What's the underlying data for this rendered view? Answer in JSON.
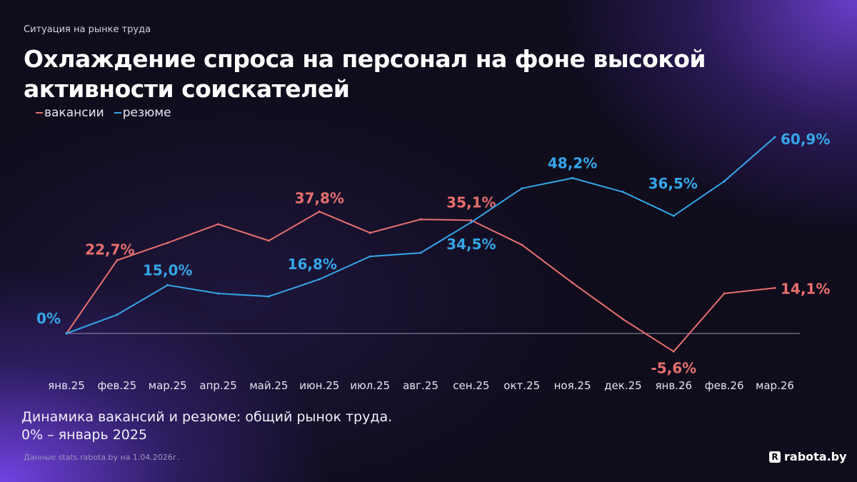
{
  "header": {
    "kicker": "Ситуация на рынке труда",
    "title": "Охлаждение спроса на персонал на фоне высокой активности соискателей"
  },
  "footer": {
    "subtitle_line1": "Динамика вакансий и резюме: общий рынок труда.",
    "subtitle_line2": "0% – январь 2025",
    "source": "Данные stats.rabota.by на 1.04.2026г.",
    "logo_text": "rabota.by",
    "logo_mark": "R"
  },
  "colors": {
    "vacancies": "#e8706e",
    "resumes": "#35a6ea",
    "baseline": "#9a93b0"
  },
  "chart_data": {
    "type": "line",
    "title": "Охлаждение спроса на персонал на фоне высокой активности соискателей",
    "categories": [
      "янв.25",
      "фев.25",
      "мар.25",
      "апр.25",
      "май.25",
      "июн.25",
      "июл.25",
      "авг.25",
      "сен.25",
      "окт.25",
      "ноя.25",
      "дек.25",
      "янв.26",
      "фев.26",
      "мар.26"
    ],
    "unit": "%",
    "ylim": [
      -10,
      65
    ],
    "grid": false,
    "baseline": 0,
    "legend_position": "top-left",
    "series": [
      {
        "name": "вакансии",
        "key": "vacancies",
        "values": [
          0,
          22.7,
          28.1,
          33.9,
          28.8,
          37.8,
          31.2,
          35.4,
          35.1,
          27.5,
          15.7,
          4.4,
          -5.6,
          12.4,
          14.1
        ],
        "labels": [
          {
            "index": 1,
            "text": "22,7%"
          },
          {
            "index": 5,
            "text": "37,8%"
          },
          {
            "index": 8,
            "text": "35,1%"
          },
          {
            "index": 12,
            "text": "-5,6%"
          },
          {
            "index": 14,
            "text": "14,1%"
          }
        ]
      },
      {
        "name": "резюме",
        "key": "resumes",
        "values": [
          0,
          5.8,
          15.0,
          12.4,
          11.5,
          16.8,
          23.9,
          25.0,
          34.5,
          45.0,
          48.2,
          43.9,
          36.5,
          47.2,
          60.9
        ],
        "labels": [
          {
            "index": 0,
            "text": "0%"
          },
          {
            "index": 2,
            "text": "15,0%"
          },
          {
            "index": 5,
            "text": "16,8%"
          },
          {
            "index": 8,
            "text": "34,5%"
          },
          {
            "index": 10,
            "text": "48,2%"
          },
          {
            "index": 12,
            "text": "36,5%"
          },
          {
            "index": 14,
            "text": "60,9%"
          }
        ]
      }
    ]
  }
}
